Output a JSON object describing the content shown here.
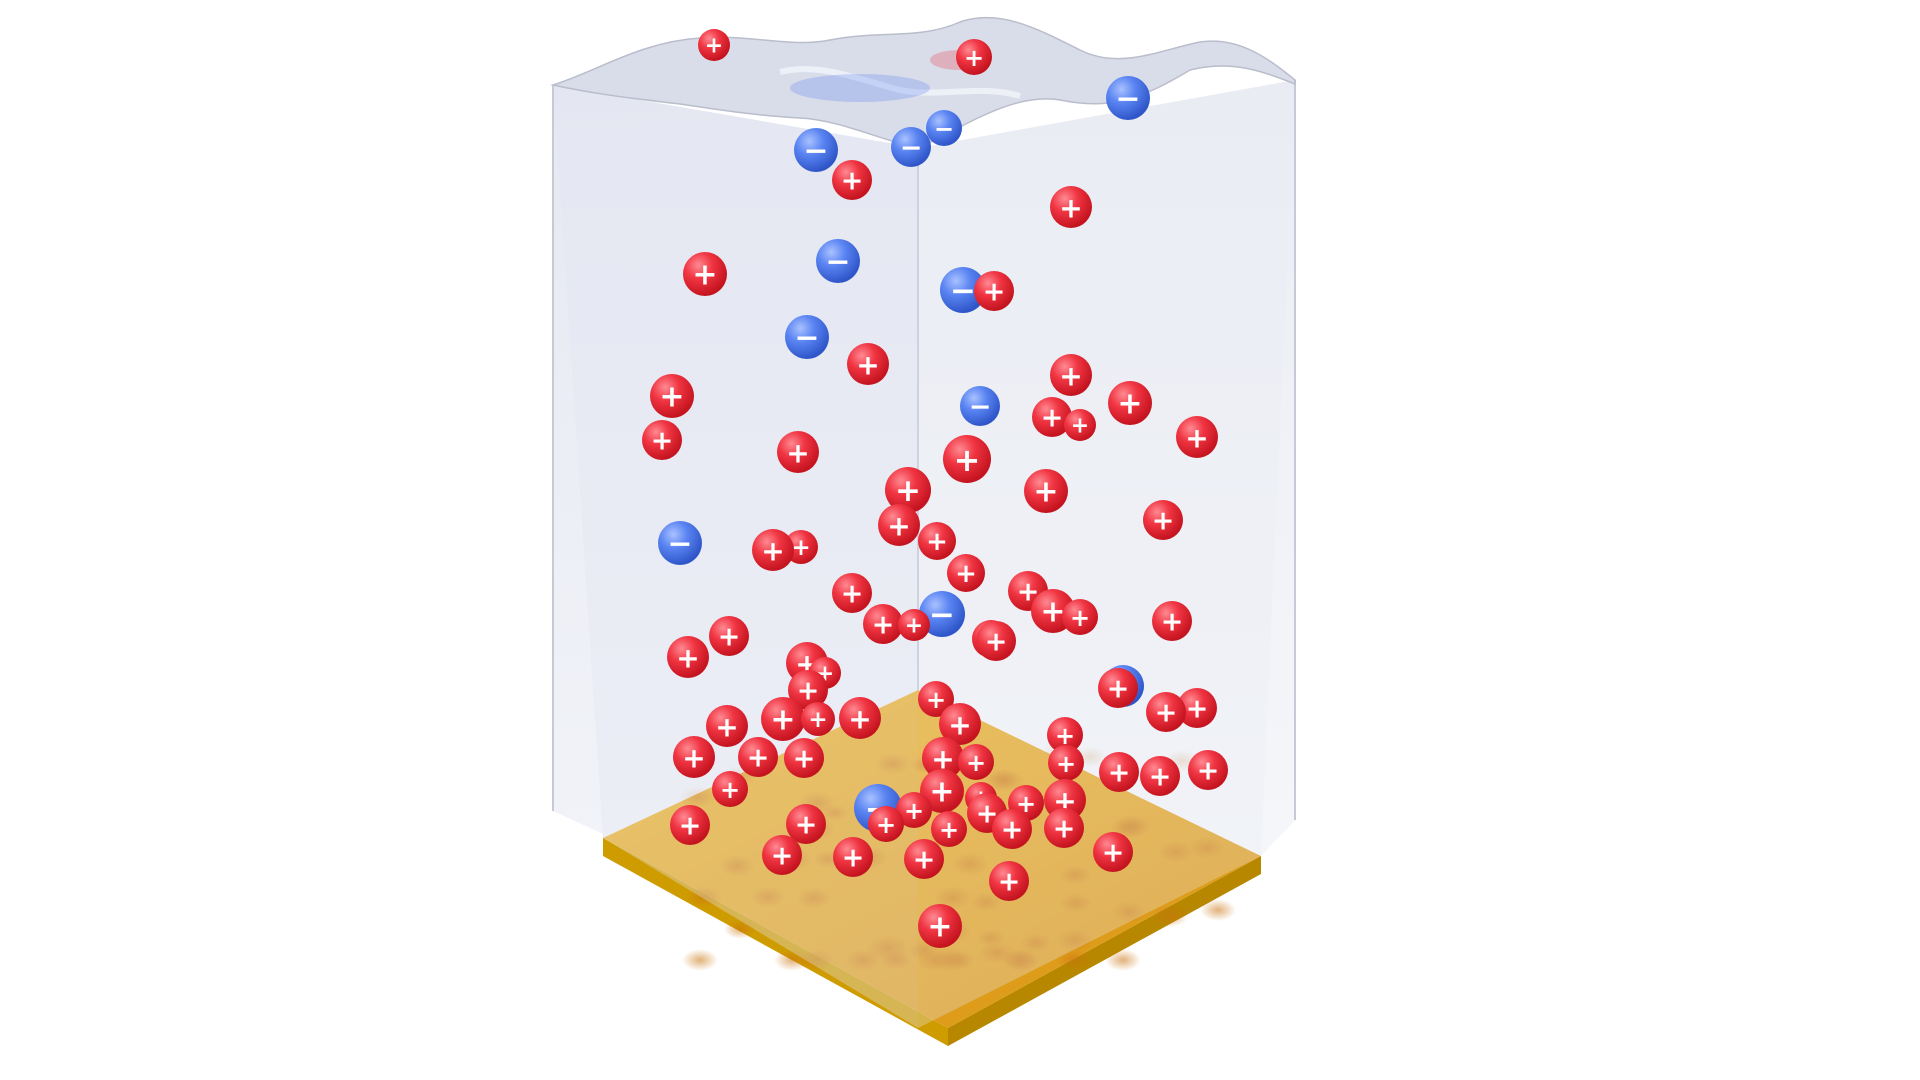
{
  "scene": {
    "colors": {
      "background": "#ffffff",
      "liquid_top": "#e3e6ef",
      "liquid_left": "#dde1ee",
      "liquid_right": "#e6e9f3",
      "liquid_edge": "#b8bccd",
      "gold_top": "#e3a21a",
      "gold_side_left": "#cf9c00",
      "gold_side_right": "#b98900",
      "cation": "#ee2d3a",
      "anion": "#4f7cf0",
      "sign": "#ffffff"
    },
    "labels": {
      "cation_sign": "+",
      "anion_sign": "−"
    },
    "counts": {
      "cations": 82,
      "anions": 13
    }
  }
}
